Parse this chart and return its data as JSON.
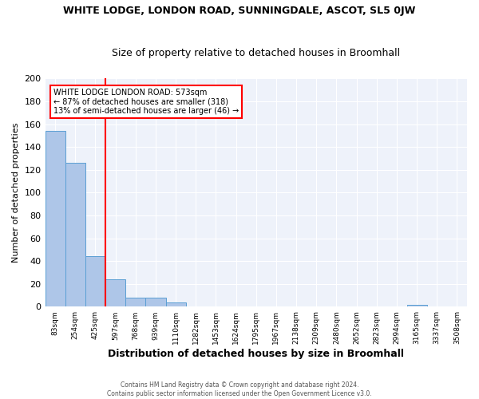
{
  "title": "WHITE LODGE, LONDON ROAD, SUNNINGDALE, ASCOT, SL5 0JW",
  "subtitle": "Size of property relative to detached houses in Broomhall",
  "xlabel": "Distribution of detached houses by size in Broomhall",
  "ylabel": "Number of detached properties",
  "bin_labels": [
    "83sqm",
    "254sqm",
    "425sqm",
    "597sqm",
    "768sqm",
    "939sqm",
    "1110sqm",
    "1282sqm",
    "1453sqm",
    "1624sqm",
    "1795sqm",
    "1967sqm",
    "2138sqm",
    "2309sqm",
    "2480sqm",
    "2652sqm",
    "2823sqm",
    "2994sqm",
    "3165sqm",
    "3337sqm",
    "3508sqm"
  ],
  "bar_heights": [
    154,
    126,
    44,
    24,
    8,
    8,
    4,
    0,
    0,
    0,
    0,
    0,
    0,
    0,
    0,
    0,
    0,
    0,
    2,
    0,
    0
  ],
  "bar_color": "#aec6e8",
  "bar_edge_color": "#5a9fd4",
  "annotation_text_line1": "WHITE LODGE LONDON ROAD: 573sqm",
  "annotation_text_line2": "← 87% of detached houses are smaller (318)",
  "annotation_text_line3": "13% of semi-detached houses are larger (46) →",
  "vline_color": "red",
  "vline_x": 3,
  "footer_line1": "Contains HM Land Registry data © Crown copyright and database right 2024.",
  "footer_line2": "Contains public sector information licensed under the Open Government Licence v3.0.",
  "background_color": "#eef2fa",
  "ylim": [
    0,
    200
  ],
  "yticks": [
    0,
    20,
    40,
    60,
    80,
    100,
    120,
    140,
    160,
    180,
    200
  ]
}
